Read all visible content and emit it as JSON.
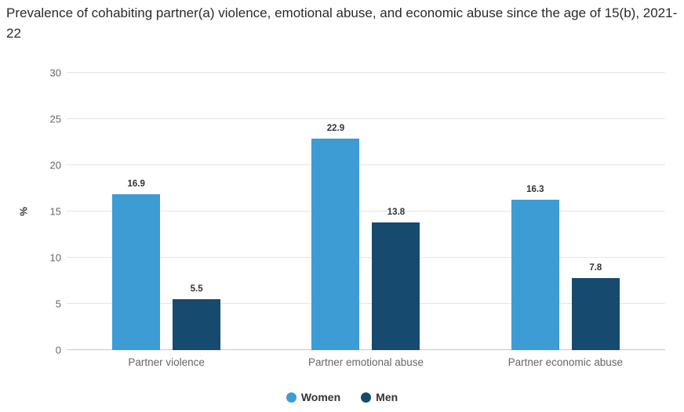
{
  "chart_data": {
    "type": "bar",
    "title": "Prevalence of cohabiting partner(a) violence, emotional abuse, and economic abuse since the age of 15(b), 2021-22",
    "categories": [
      "Partner violence",
      "Partner emotional abuse",
      "Partner economic abuse"
    ],
    "series": [
      {
        "name": "Women",
        "color": "#3d9cd3",
        "values": [
          16.9,
          22.9,
          16.3
        ]
      },
      {
        "name": "Men",
        "color": "#174a6f",
        "values": [
          5.5,
          13.8,
          7.8
        ]
      }
    ],
    "xlabel": "",
    "ylabel": "%",
    "ylim": [
      0,
      30
    ],
    "yticks": [
      0,
      5,
      10,
      15,
      20,
      25,
      30
    ],
    "grid": true,
    "data_labels": true,
    "legend_position": "bottom",
    "colors": {
      "title_text": "#2a2a2a",
      "axis_text": "#666666",
      "data_label_text": "#333333",
      "gridline": "#e4e4e9",
      "baseline": "#c9c9ce",
      "background": "#ffffff"
    }
  }
}
